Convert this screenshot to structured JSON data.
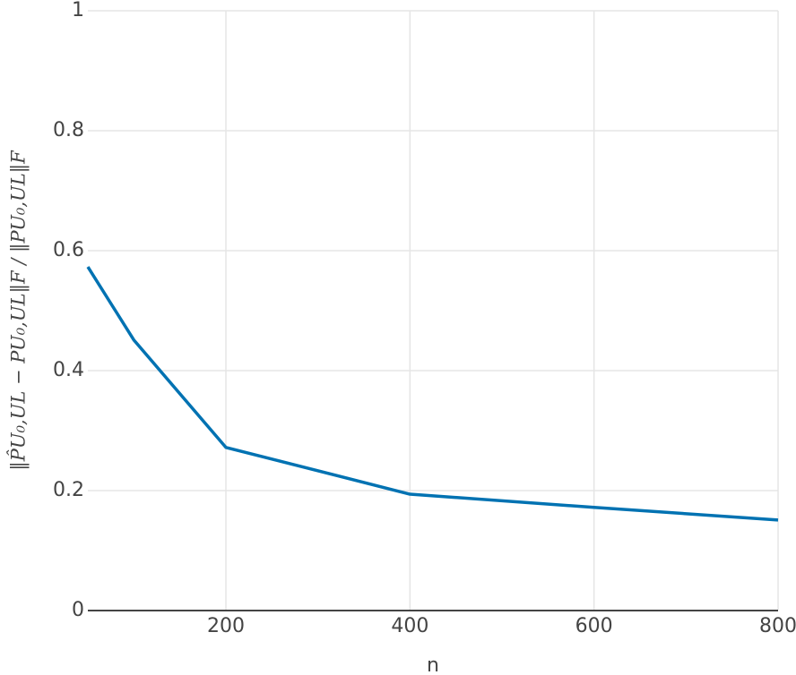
{
  "chart_data": {
    "type": "line",
    "x_label": "n",
    "y_label": "‖P̂U₀,UL − PU₀,UL‖F / ‖PU₀,UL‖F",
    "x": [
      50,
      100,
      200,
      400,
      600,
      800
    ],
    "series": [
      {
        "color": "#0072b2",
        "values": [
          0.573,
          0.451,
          0.272,
          0.194,
          0.172,
          0.151
        ]
      }
    ],
    "xlim": [
      50,
      800
    ],
    "xticks": [
      200,
      400,
      600,
      800
    ],
    "ylim": [
      0,
      1
    ],
    "yticks": [
      0,
      0.2,
      0.4,
      0.6,
      0.8,
      1
    ],
    "grid": true
  }
}
